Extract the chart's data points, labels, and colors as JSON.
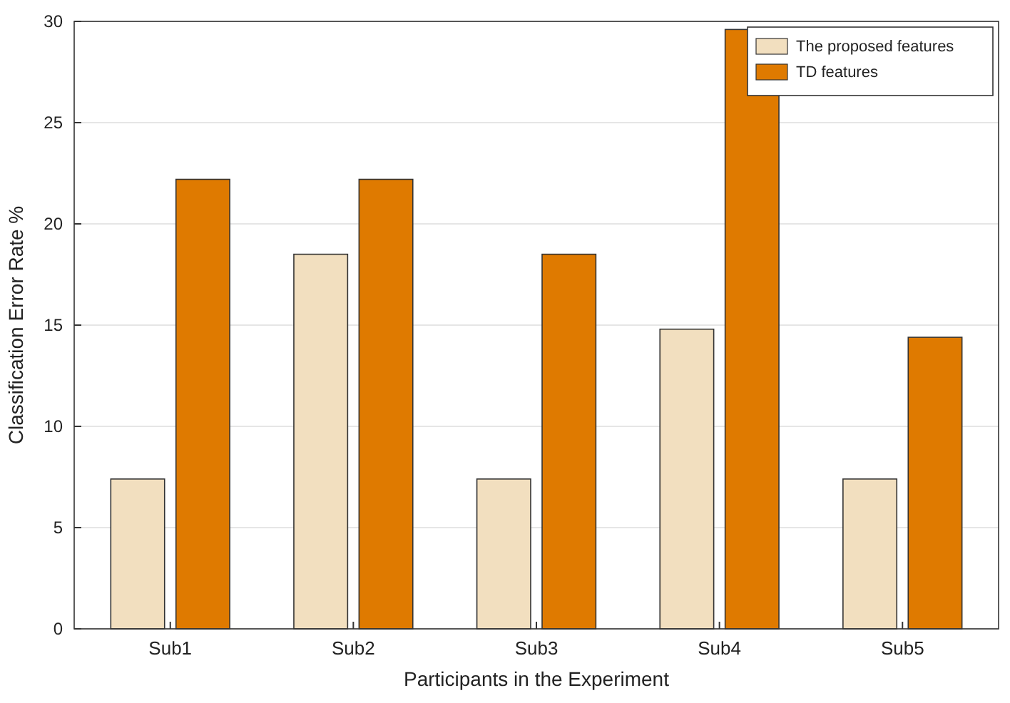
{
  "chart_data": {
    "type": "bar",
    "xlabel": "Participants in the Experiment",
    "ylabel": "Classification Error Rate %",
    "categories": [
      "Sub1",
      "Sub2",
      "Sub3",
      "Sub4",
      "Sub5"
    ],
    "series": [
      {
        "name": "The proposed features",
        "color": "#f2dfbf",
        "values": [
          7.4,
          18.5,
          7.4,
          14.8,
          7.4
        ]
      },
      {
        "name": "TD features",
        "color": "#df7a00",
        "values": [
          22.2,
          22.2,
          18.5,
          29.6,
          14.4
        ]
      }
    ],
    "ylim": [
      0,
      30
    ],
    "yticks": [
      0,
      5,
      10,
      15,
      20,
      25,
      30
    ],
    "grid": "y",
    "legend": "top right"
  }
}
